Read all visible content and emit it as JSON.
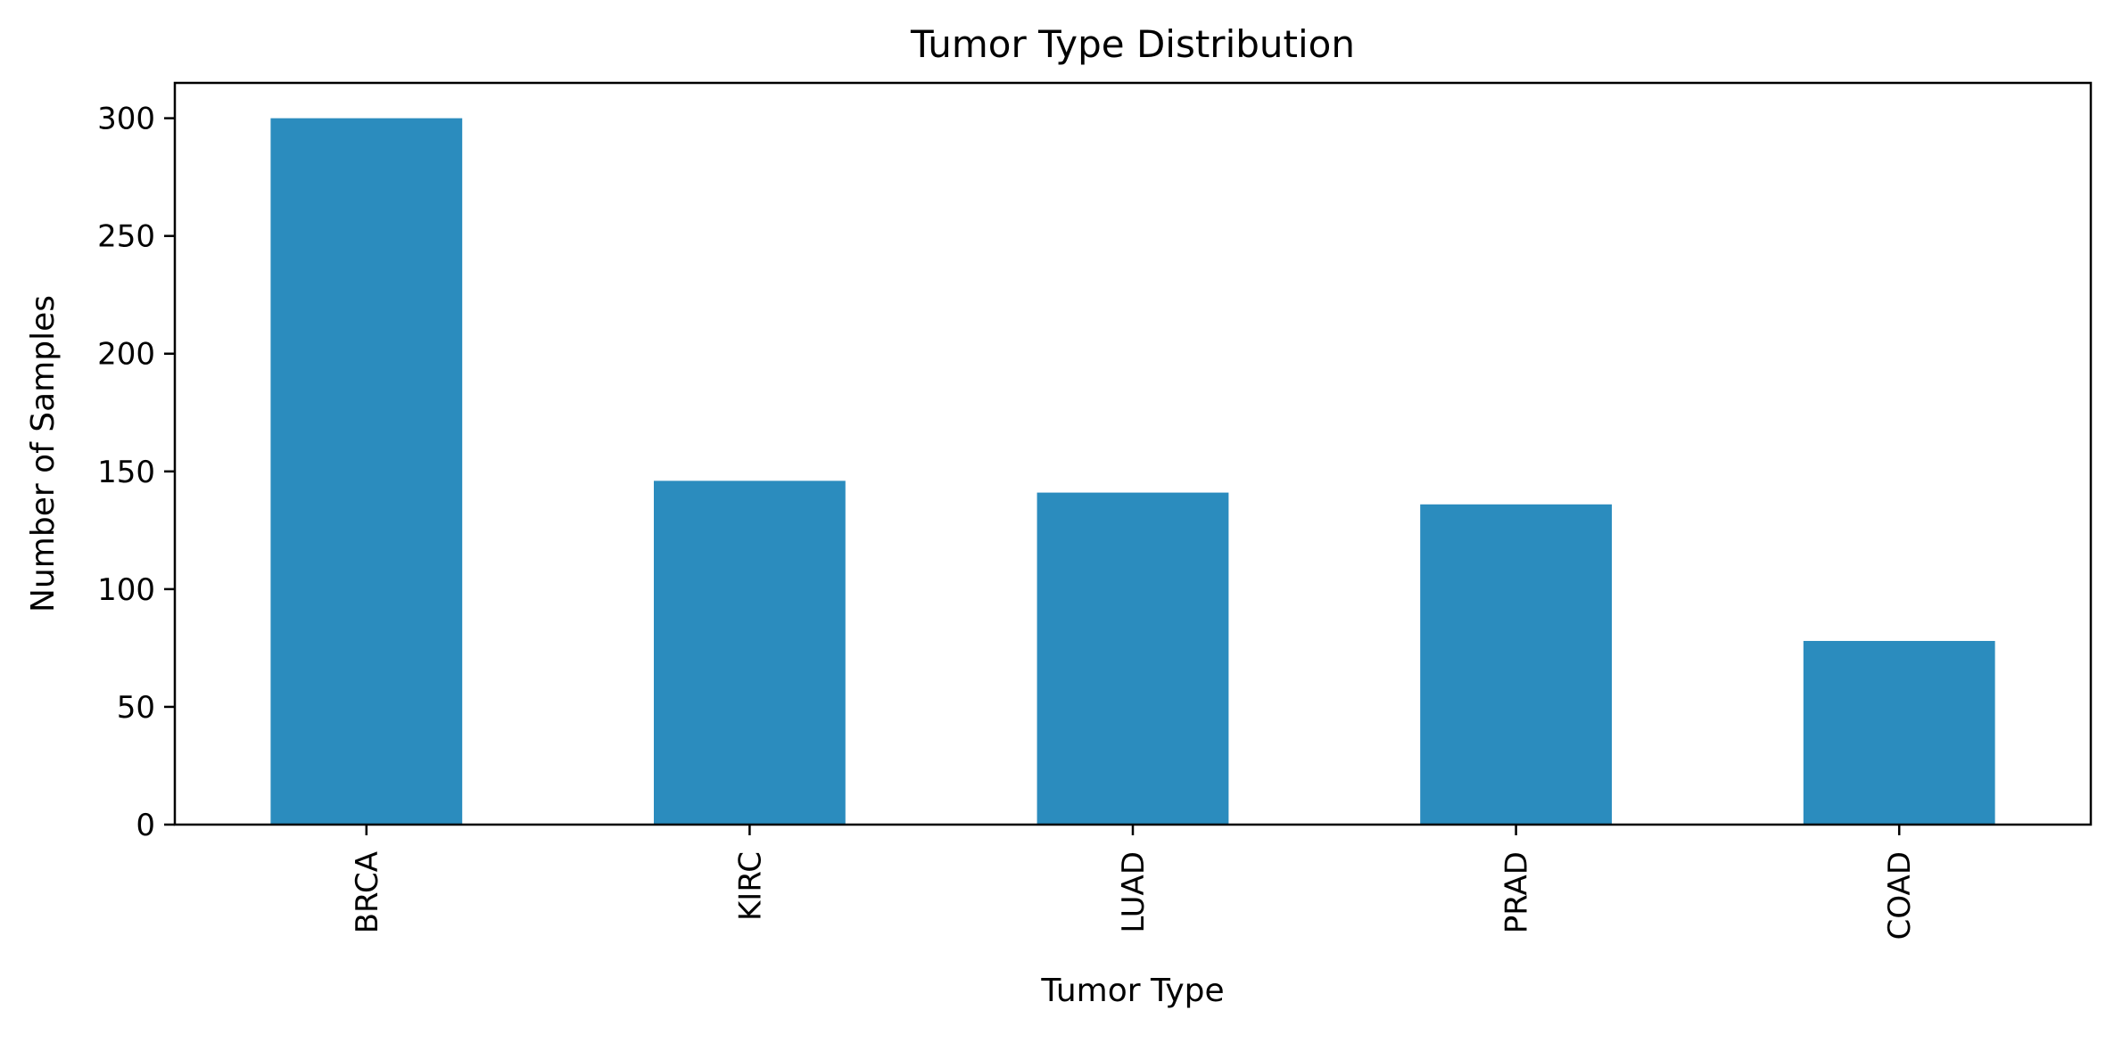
{
  "chart_data": {
    "type": "bar",
    "title": "Tumor Type Distribution",
    "xlabel": "Tumor Type",
    "ylabel": "Number of Samples",
    "categories": [
      "BRCA",
      "KIRC",
      "LUAD",
      "PRAD",
      "COAD"
    ],
    "values": [
      300,
      146,
      141,
      136,
      78
    ],
    "ylim": [
      0,
      315
    ],
    "yticks": [
      0,
      50,
      100,
      150,
      200,
      250,
      300
    ],
    "grid": false,
    "bar_color": "#2b8cbe"
  }
}
